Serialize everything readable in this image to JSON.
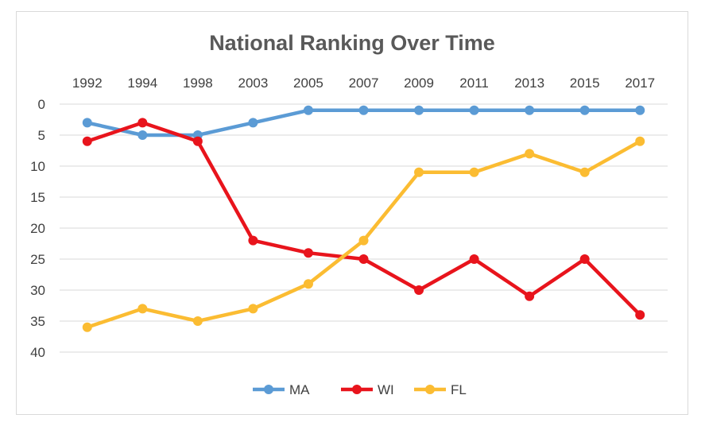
{
  "chart_data": {
    "type": "line",
    "title": "National Ranking Over Time",
    "xlabel": "",
    "ylabel": "",
    "categories": [
      "1992",
      "1994",
      "1998",
      "2003",
      "2005",
      "2007",
      "2009",
      "2011",
      "2013",
      "2015",
      "2017"
    ],
    "ylim": [
      0,
      40
    ],
    "y_ticks": [
      0,
      5,
      10,
      15,
      20,
      25,
      30,
      35,
      40
    ],
    "y_reversed": true,
    "x_axis_position": "top",
    "grid": true,
    "legend_position": "bottom",
    "series": [
      {
        "name": "MA",
        "color": "#5b9bd5",
        "values": [
          3,
          5,
          5,
          3,
          1,
          1,
          1,
          1,
          1,
          1,
          1
        ]
      },
      {
        "name": "WI",
        "color": "#e8141c",
        "values": [
          6,
          3,
          6,
          22,
          24,
          25,
          30,
          25,
          31,
          25,
          34
        ]
      },
      {
        "name": "FL",
        "color": "#fbbc32",
        "values": [
          36,
          33,
          35,
          33,
          29,
          22,
          11,
          11,
          8,
          11,
          6
        ]
      }
    ]
  }
}
